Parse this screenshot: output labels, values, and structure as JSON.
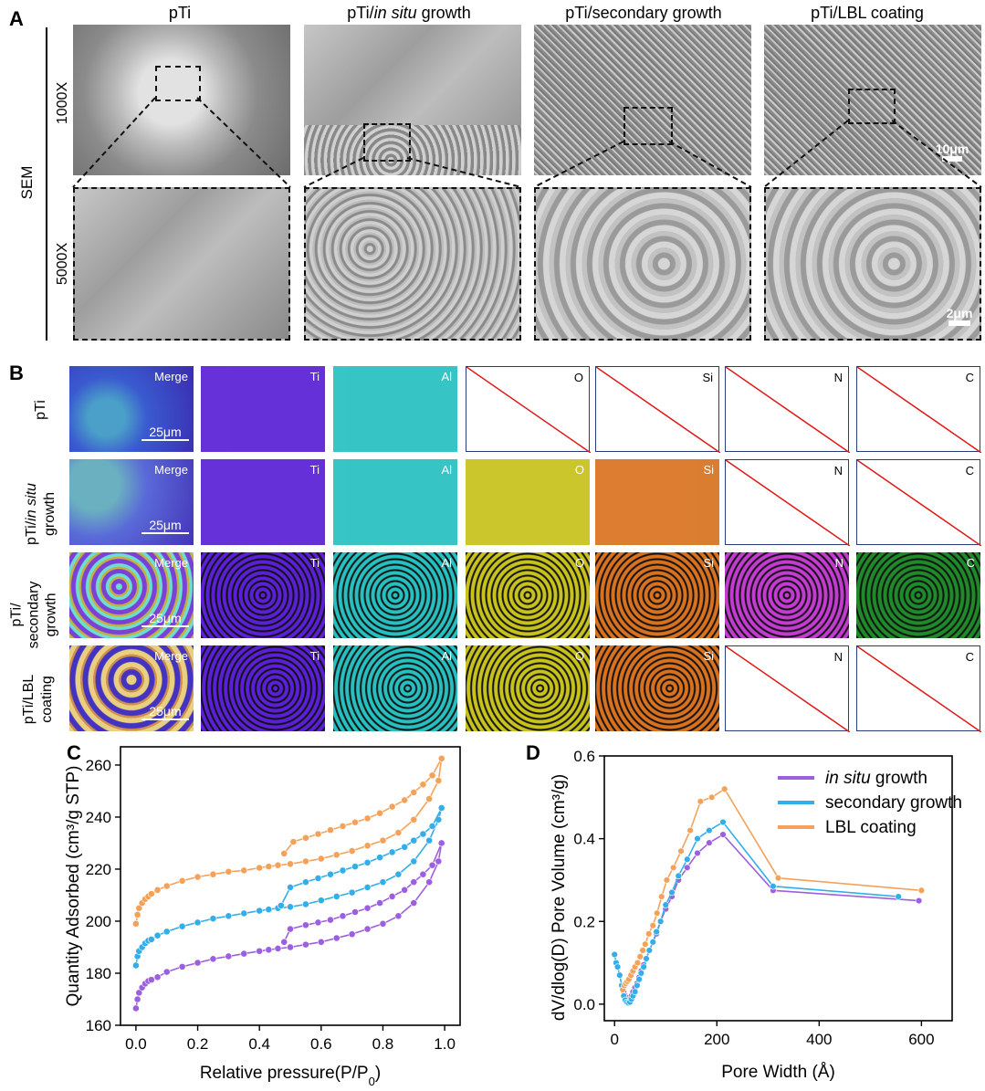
{
  "panel_a": {
    "letter": "A",
    "columns": [
      "pTi",
      "pTi/in situ growth",
      "pTi/secondary growth",
      "pTi/LBL coating"
    ],
    "side_label": "SEM",
    "rows": [
      "1000X",
      "5000X"
    ],
    "scalebar_top": "10μm",
    "scalebar_bottom": "2μm"
  },
  "panel_b": {
    "letter": "B",
    "row_labels": [
      "pTi",
      "pTi/in situ growth",
      "pTi/ secondary growth",
      "pTi/LBL coating"
    ],
    "channels": [
      "Merge",
      "Ti",
      "Al",
      "O",
      "Si",
      "N",
      "C"
    ],
    "scalebar": "25μm",
    "present": [
      [
        true,
        true,
        true,
        false,
        false,
        false,
        false
      ],
      [
        true,
        true,
        true,
        true,
        true,
        false,
        false
      ],
      [
        true,
        true,
        true,
        true,
        true,
        true,
        true
      ],
      [
        true,
        true,
        true,
        true,
        true,
        false,
        false
      ]
    ],
    "colors": {
      "Ti": "#5a1fd6",
      "Al": "#27c0c0",
      "O": "#c8c21c",
      "Si": "#d9721f",
      "N": "#c43bd1",
      "C": "#1f8a2a"
    }
  },
  "panel_c": {
    "letter": "C",
    "chart_data": {
      "type": "line",
      "xlabel": "Relative pressure(P/P0)",
      "ylabel": "Quantity Adsorbed (cm³/g STP)",
      "xlim": [
        -0.05,
        1.05
      ],
      "ylim": [
        160,
        267
      ],
      "xticks": [
        "0.0",
        "0.2",
        "0.4",
        "0.6",
        "0.8",
        "1.0"
      ],
      "yticks": [
        "160",
        "180",
        "200",
        "220",
        "240",
        "260"
      ],
      "series": [
        {
          "color": "#9b5fe0",
          "adsorption_x": [
            0.0,
            0.005,
            0.01,
            0.02,
            0.03,
            0.04,
            0.05,
            0.07,
            0.1,
            0.15,
            0.2,
            0.25,
            0.3,
            0.35,
            0.4,
            0.43,
            0.46,
            0.5,
            0.55,
            0.6,
            0.65,
            0.7,
            0.75,
            0.8,
            0.85,
            0.9,
            0.95,
            0.98,
            0.99
          ],
          "adsorption_y": [
            166.5,
            170,
            172.5,
            174.5,
            176,
            177,
            177.5,
            178.5,
            180.5,
            182.5,
            184,
            185.5,
            186.5,
            187.5,
            188.5,
            189,
            189.5,
            190,
            191,
            192,
            193.5,
            195,
            197,
            199,
            202,
            207,
            215,
            223,
            230
          ],
          "desorption_x": [
            0.99,
            0.96,
            0.93,
            0.9,
            0.87,
            0.83,
            0.79,
            0.75,
            0.71,
            0.67,
            0.63,
            0.59,
            0.55,
            0.5,
            0.48
          ],
          "desorption_y": [
            230,
            221.5,
            218,
            215,
            212,
            209.5,
            207,
            205,
            203.5,
            202,
            200.5,
            199.5,
            198.5,
            197,
            192
          ]
        },
        {
          "color": "#33aee8",
          "adsorption_x": [
            0.0,
            0.005,
            0.01,
            0.02,
            0.03,
            0.04,
            0.05,
            0.07,
            0.1,
            0.15,
            0.2,
            0.25,
            0.3,
            0.35,
            0.4,
            0.43,
            0.46,
            0.5,
            0.55,
            0.6,
            0.65,
            0.7,
            0.75,
            0.8,
            0.85,
            0.9,
            0.95,
            0.98,
            0.99
          ],
          "adsorption_y": [
            183,
            186.5,
            188.5,
            190,
            191.5,
            192.5,
            193,
            194.5,
            196,
            198,
            199.5,
            201,
            202,
            203,
            204,
            204.5,
            205,
            205.5,
            206.5,
            208,
            209.5,
            211,
            213,
            215,
            218,
            223,
            231,
            239,
            243.5
          ],
          "desorption_x": [
            0.99,
            0.96,
            0.93,
            0.9,
            0.87,
            0.83,
            0.79,
            0.75,
            0.71,
            0.67,
            0.63,
            0.59,
            0.55,
            0.5,
            0.47
          ],
          "desorption_y": [
            243.5,
            236.5,
            233.5,
            231,
            228.5,
            226.5,
            224.5,
            222.5,
            221,
            219.5,
            218,
            216.5,
            215,
            213,
            206
          ]
        },
        {
          "color": "#f4a25a",
          "adsorption_x": [
            0.0,
            0.005,
            0.01,
            0.02,
            0.03,
            0.04,
            0.05,
            0.07,
            0.1,
            0.15,
            0.2,
            0.25,
            0.3,
            0.35,
            0.4,
            0.43,
            0.46,
            0.5,
            0.55,
            0.6,
            0.65,
            0.7,
            0.75,
            0.8,
            0.85,
            0.9,
            0.95,
            0.98,
            0.99
          ],
          "adsorption_y": [
            199,
            202.5,
            205,
            207,
            208.5,
            209.5,
            210.5,
            212,
            213.5,
            215.5,
            217,
            218,
            219,
            219.5,
            220.5,
            221,
            221.5,
            222,
            223,
            224,
            225.5,
            227,
            229,
            231,
            234,
            239,
            247,
            254,
            262.5
          ],
          "desorption_x": [
            0.99,
            0.96,
            0.93,
            0.9,
            0.87,
            0.83,
            0.79,
            0.75,
            0.71,
            0.67,
            0.63,
            0.59,
            0.55,
            0.51,
            0.48
          ],
          "desorption_y": [
            262.5,
            256,
            252.5,
            249.5,
            246.5,
            244,
            241.5,
            239.5,
            238,
            236.5,
            235,
            233.5,
            232,
            230.5,
            226
          ]
        }
      ]
    }
  },
  "panel_d": {
    "letter": "D",
    "chart_data": {
      "type": "line",
      "xlabel": "Pore Width (Å)",
      "ylabel": "dV/dlog(D) Pore Volume (cm³/g)",
      "xlim": [
        -20,
        660
      ],
      "ylim": [
        -0.04,
        0.6
      ],
      "xticks": [
        "0",
        "200",
        "400",
        "600"
      ],
      "yticks": [
        "0.0",
        "0.2",
        "0.4",
        "0.6"
      ],
      "series": [
        {
          "name": "in situ growth",
          "color": "#9b5fe0",
          "x": [
            18,
            21,
            24,
            27,
            30,
            33,
            36,
            40,
            44,
            48,
            52,
            57,
            62,
            68,
            75,
            82,
            90,
            100,
            112,
            125,
            142,
            162,
            185,
            212,
            310,
            595
          ],
          "y": [
            0.03,
            0.02,
            0.015,
            0.01,
            0.012,
            0.02,
            0.03,
            0.04,
            0.05,
            0.065,
            0.08,
            0.095,
            0.11,
            0.13,
            0.15,
            0.17,
            0.2,
            0.23,
            0.26,
            0.3,
            0.33,
            0.365,
            0.39,
            0.41,
            0.275,
            0.25
          ]
        },
        {
          "name": "secondary growth",
          "color": "#33aee8",
          "x": [
            0,
            3,
            6,
            10,
            14,
            18,
            21,
            24,
            27,
            30,
            33,
            36,
            40,
            44,
            48,
            52,
            57,
            62,
            68,
            75,
            82,
            90,
            100,
            112,
            125,
            142,
            162,
            185,
            212,
            310,
            555
          ],
          "y": [
            0.12,
            0.1,
            0.09,
            0.07,
            0.045,
            0.02,
            0.01,
            0.005,
            0.003,
            0.005,
            0.012,
            0.02,
            0.03,
            0.045,
            0.06,
            0.075,
            0.09,
            0.11,
            0.13,
            0.15,
            0.175,
            0.2,
            0.24,
            0.27,
            0.31,
            0.35,
            0.4,
            0.42,
            0.44,
            0.285,
            0.26
          ]
        },
        {
          "name": "LBL coating",
          "color": "#f4a25a",
          "x": [
            16,
            19,
            22,
            25,
            28,
            32,
            36,
            40,
            45,
            50,
            55,
            60,
            67,
            75,
            83,
            92,
            102,
            115,
            130,
            148,
            168,
            190,
            215,
            320,
            600
          ],
          "y": [
            0.035,
            0.045,
            0.05,
            0.055,
            0.06,
            0.07,
            0.08,
            0.09,
            0.1,
            0.115,
            0.13,
            0.145,
            0.17,
            0.19,
            0.22,
            0.26,
            0.3,
            0.33,
            0.37,
            0.42,
            0.49,
            0.5,
            0.52,
            0.305,
            0.275
          ]
        }
      ]
    }
  }
}
